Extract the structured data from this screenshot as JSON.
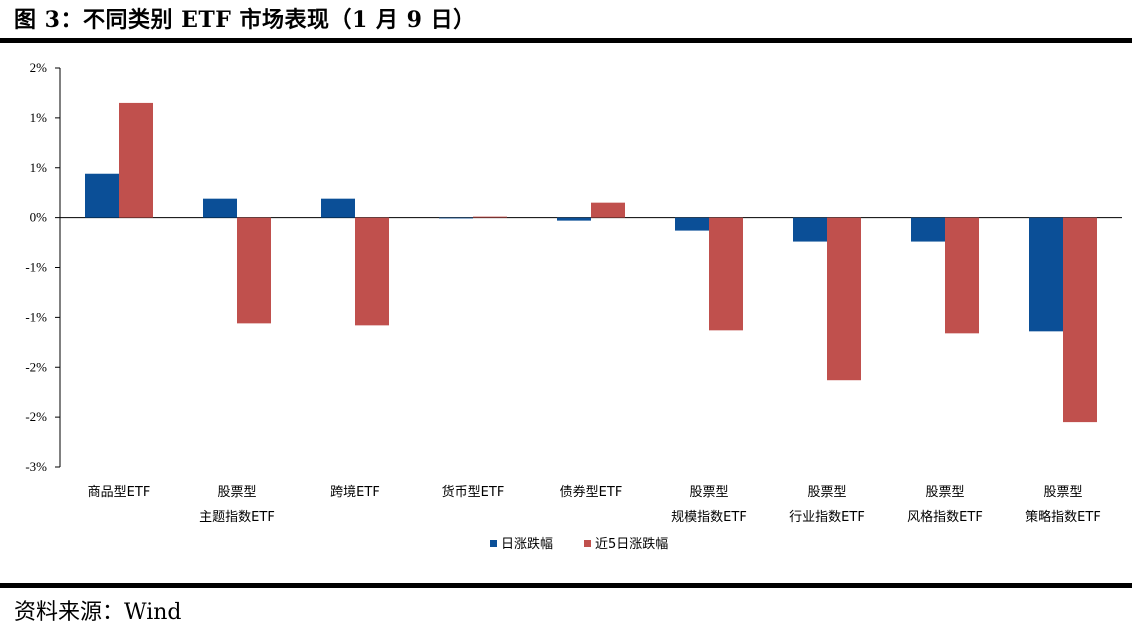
{
  "header": {
    "title": "图 3：不同类别 ETF 市场表现（1 月 9 日）"
  },
  "footer": {
    "source": "资料来源：Wind"
  },
  "chart_data": {
    "type": "bar",
    "categories": [
      [
        "商品型ETF"
      ],
      [
        "股票型",
        "主题指数ETF"
      ],
      [
        "跨境ETF"
      ],
      [
        "货币型ETF"
      ],
      [
        "债券型ETF"
      ],
      [
        "股票型",
        "规模指数ETF"
      ],
      [
        "股票型",
        "行业指数ETF"
      ],
      [
        "股票型",
        "风格指数ETF"
      ],
      [
        "股票型",
        "策略指数ETF"
      ]
    ],
    "series": [
      {
        "name": "日涨跌幅",
        "color": "#0b4f97",
        "values": [
          0.44,
          0.19,
          0.19,
          0.0,
          -0.03,
          -0.13,
          -0.24,
          -0.24,
          -1.14
        ]
      },
      {
        "name": "近5日涨跌幅",
        "color": "#c0504d",
        "values": [
          1.15,
          -1.06,
          -1.08,
          0.01,
          0.15,
          -1.13,
          -1.63,
          -1.16,
          -2.05
        ]
      }
    ],
    "ylim": [
      -2.5,
      1.5
    ],
    "yticks": [
      1.5,
      1.0,
      0.5,
      0.0,
      -0.5,
      -1.0,
      -1.5,
      -2.0,
      -2.5
    ],
    "ytick_labels": [
      "2%",
      "1%",
      "1%",
      "0%",
      "-1%",
      "-1%",
      "-2%",
      "-2%",
      "-3%"
    ],
    "grid": false,
    "legend_position": "bottom"
  }
}
